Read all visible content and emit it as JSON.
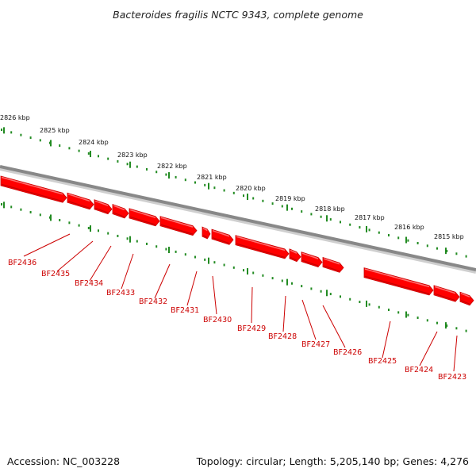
{
  "title": "Bacteroides fragilis NCTC 9343, complete genome",
  "accession": "Accession: NC_003228",
  "summary": "Topology: circular; Length: 5,205,140 bp; Genes: 4,276",
  "colors": {
    "backbone": "#888888",
    "backbone_shadow": "#cfcfcf",
    "gene": "#ff0000",
    "gene_dark": "#c80000",
    "gene_light": "#ff7070",
    "tick": "#228b22",
    "label": "#cc0000"
  },
  "scale_ticks": [
    {
      "label": "2826 kbp",
      "kbp": 2826
    },
    {
      "label": "2825 kbp",
      "kbp": 2825
    },
    {
      "label": "2824 kbp",
      "kbp": 2824
    },
    {
      "label": "2823 kbp",
      "kbp": 2823
    },
    {
      "label": "2822 kbp",
      "kbp": 2822
    },
    {
      "label": "2821 kbp",
      "kbp": 2821
    },
    {
      "label": "2820 kbp",
      "kbp": 2820
    },
    {
      "label": "2819 kbp",
      "kbp": 2819
    },
    {
      "label": "2818 kbp",
      "kbp": 2818
    },
    {
      "label": "2817 kbp",
      "kbp": 2817
    },
    {
      "label": "2816 kbp",
      "kbp": 2816
    },
    {
      "label": "2815 kbp",
      "kbp": 2815
    }
  ],
  "genes": [
    {
      "name": "BF2436"
    },
    {
      "name": "BF2435"
    },
    {
      "name": "BF2434"
    },
    {
      "name": "BF2433"
    },
    {
      "name": "BF2432"
    },
    {
      "name": "BF2431"
    },
    {
      "name": "BF2430"
    },
    {
      "name": "BF2429"
    },
    {
      "name": "BF2428"
    },
    {
      "name": "BF2427"
    },
    {
      "name": "BF2426"
    },
    {
      "name": "BF2425"
    },
    {
      "name": "BF2424"
    },
    {
      "name": "BF2423"
    }
  ]
}
